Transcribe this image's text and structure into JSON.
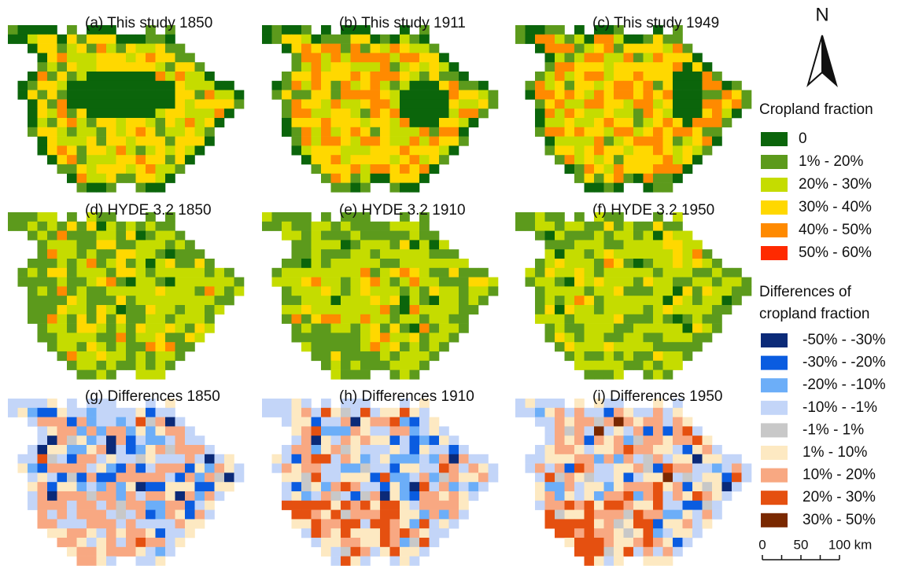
{
  "panels": [
    {
      "label": "(a) This study 1850"
    },
    {
      "label": "(b) This study 1911"
    },
    {
      "label": "(c) This study 1949"
    },
    {
      "label": "(d) HYDE 3.2 1850"
    },
    {
      "label": "(e) HYDE 3.2 1910"
    },
    {
      "label": "(f) HYDE 3.2 1950"
    },
    {
      "label": "(g) Differences 1850"
    },
    {
      "label": "(h) Differences 1910"
    },
    {
      "label": "(i) Differences 1950"
    }
  ],
  "north": "N",
  "legend_cropland": {
    "title": "Cropland fraction",
    "items": [
      {
        "label": "0",
        "color": "#0b650b"
      },
      {
        "label": "1% - 20%",
        "color": "#5c9a1c"
      },
      {
        "label": "20% - 30%",
        "color": "#c5dc00"
      },
      {
        "label": "30% - 40%",
        "color": "#ffd800"
      },
      {
        "label": "40% - 50%",
        "color": "#ff8a00"
      },
      {
        "label": "50% - 60%",
        "color": "#ff2a00"
      }
    ]
  },
  "legend_differences": {
    "title": [
      "Differences of",
      "cropland fraction"
    ],
    "items": [
      {
        "label": "-50% - -30%",
        "color": "#0b2a78"
      },
      {
        "label": "-30% - -20%",
        "color": "#0a5ce0"
      },
      {
        "label": "-20% - -10%",
        "color": "#6caef8"
      },
      {
        "label": "-10% - -1%",
        "color": "#c3d5f8"
      },
      {
        "label": "-1% - 1%",
        "color": "#c8c8c8"
      },
      {
        "label": "1% - 10%",
        "color": "#fde9c2"
      },
      {
        "label": "10% - 20%",
        "color": "#f8a882"
      },
      {
        "label": "20% - 30%",
        "color": "#e55010"
      },
      {
        "label": "30% - 50%",
        "color": "#7a2800"
      }
    ]
  },
  "scalebar": {
    "ticks": [
      0,
      50,
      100
    ],
    "unit": "km"
  }
}
